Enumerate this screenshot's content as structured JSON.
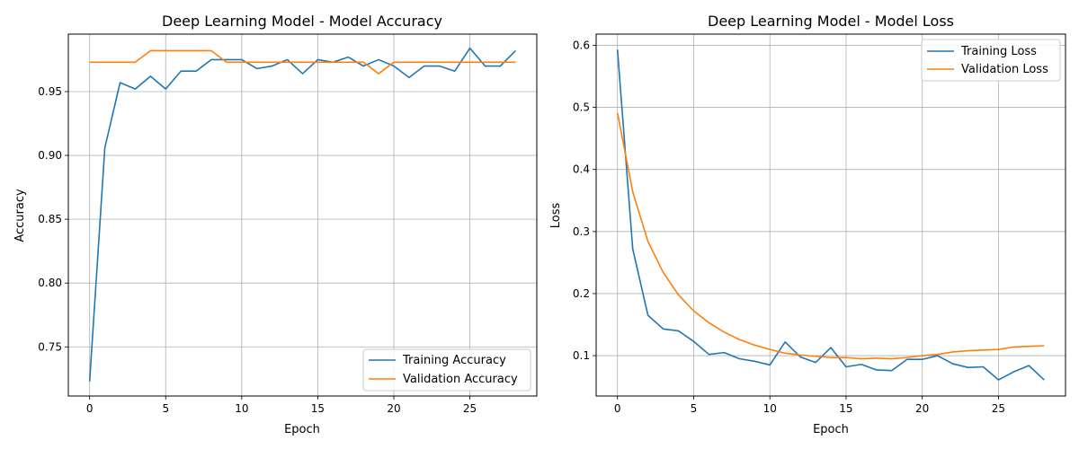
{
  "chart_data": [
    {
      "type": "line",
      "title": "Deep Learning Model - Model Accuracy",
      "xlabel": "Epoch",
      "ylabel": "Accuracy",
      "xlim": [
        -1.4,
        29.4
      ],
      "ylim": [
        0.7115,
        0.995
      ],
      "xticks": [
        0,
        5,
        10,
        15,
        20,
        25
      ],
      "yticks": [
        0.75,
        0.8,
        0.85,
        0.9,
        0.95
      ],
      "xtick_labels": [
        "0",
        "5",
        "10",
        "15",
        "20",
        "25"
      ],
      "ytick_labels": [
        "0.75",
        "0.80",
        "0.85",
        "0.90",
        "0.95"
      ],
      "grid": true,
      "legend_position": "lower-right",
      "x": [
        0,
        1,
        2,
        3,
        4,
        5,
        6,
        7,
        8,
        9,
        10,
        11,
        12,
        13,
        14,
        15,
        16,
        17,
        18,
        19,
        20,
        21,
        22,
        23,
        24,
        25,
        26,
        27,
        28
      ],
      "series": [
        {
          "name": "Training Accuracy",
          "color": "#1f77b4",
          "values": [
            0.723,
            0.906,
            0.957,
            0.952,
            0.962,
            0.952,
            0.966,
            0.966,
            0.975,
            0.975,
            0.975,
            0.968,
            0.97,
            0.975,
            0.964,
            0.975,
            0.973,
            0.977,
            0.97,
            0.975,
            0.97,
            0.961,
            0.97,
            0.97,
            0.966,
            0.984,
            0.97,
            0.97,
            0.982
          ]
        },
        {
          "name": "Validation Accuracy",
          "color": "#ff7f0e",
          "values": [
            0.973,
            0.973,
            0.973,
            0.973,
            0.982,
            0.982,
            0.982,
            0.982,
            0.982,
            0.973,
            0.973,
            0.973,
            0.973,
            0.973,
            0.973,
            0.973,
            0.973,
            0.973,
            0.973,
            0.964,
            0.973,
            0.973,
            0.973,
            0.973,
            0.973,
            0.973,
            0.973,
            0.973,
            0.973
          ]
        }
      ]
    },
    {
      "type": "line",
      "title": "Deep Learning Model - Model Loss",
      "xlabel": "Epoch",
      "ylabel": "Loss",
      "xlim": [
        -1.4,
        29.4
      ],
      "ylim": [
        0.035,
        0.618
      ],
      "xticks": [
        0,
        5,
        10,
        15,
        20,
        25
      ],
      "yticks": [
        0.1,
        0.2,
        0.3,
        0.4,
        0.5,
        0.6
      ],
      "xtick_labels": [
        "0",
        "5",
        "10",
        "15",
        "20",
        "25"
      ],
      "ytick_labels": [
        "0.1",
        "0.2",
        "0.3",
        "0.4",
        "0.5",
        "0.6"
      ],
      "grid": true,
      "legend_position": "upper-right",
      "x": [
        0,
        1,
        2,
        3,
        4,
        5,
        6,
        7,
        8,
        9,
        10,
        11,
        12,
        13,
        14,
        15,
        16,
        17,
        18,
        19,
        20,
        21,
        22,
        23,
        24,
        25,
        26,
        27,
        28
      ],
      "series": [
        {
          "name": "Training Loss",
          "color": "#1f77b4",
          "values": [
            0.593,
            0.272,
            0.165,
            0.143,
            0.14,
            0.123,
            0.102,
            0.105,
            0.095,
            0.091,
            0.085,
            0.122,
            0.098,
            0.089,
            0.113,
            0.082,
            0.086,
            0.077,
            0.076,
            0.094,
            0.094,
            0.1,
            0.087,
            0.081,
            0.082,
            0.061,
            0.074,
            0.084,
            0.061
          ]
        },
        {
          "name": "Validation Loss",
          "color": "#ff7f0e",
          "values": [
            0.491,
            0.364,
            0.284,
            0.234,
            0.198,
            0.172,
            0.153,
            0.138,
            0.126,
            0.117,
            0.11,
            0.104,
            0.101,
            0.099,
            0.097,
            0.097,
            0.095,
            0.096,
            0.095,
            0.097,
            0.1,
            0.102,
            0.106,
            0.108,
            0.109,
            0.11,
            0.114,
            0.115,
            0.116
          ]
        }
      ]
    }
  ]
}
